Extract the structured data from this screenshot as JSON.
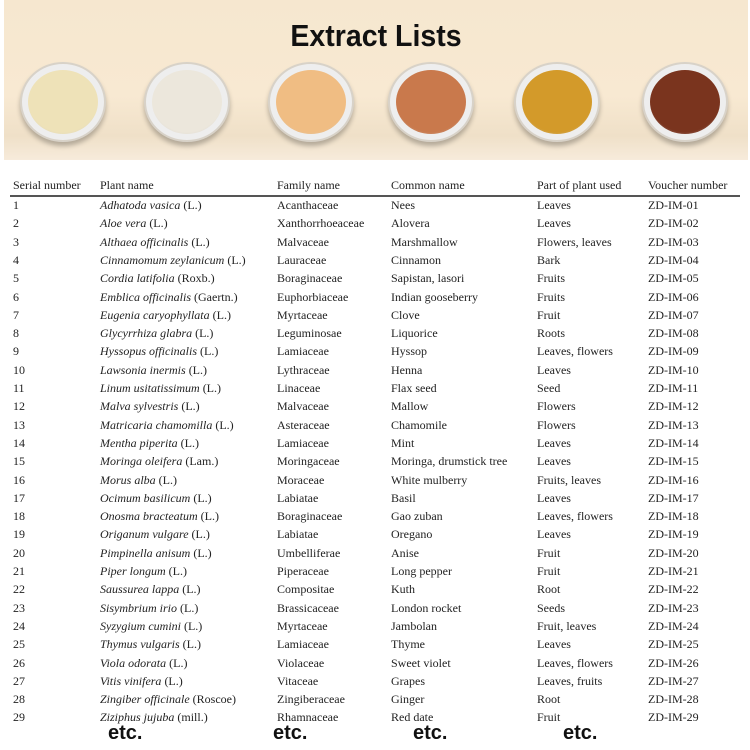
{
  "title": "Extract Lists",
  "powder_colors": [
    "#eee2b8",
    "#ece7dc",
    "#f0bd83",
    "#c9794c",
    "#d39a2a",
    "#7a341e"
  ],
  "headers": [
    "Serial number",
    "Plant name",
    "Family name",
    "Common name",
    "Part of plant used",
    "Voucher number"
  ],
  "rows": [
    [
      "1",
      "Adhatoda vasica",
      "(L.)",
      "Acanthaceae",
      "Nees",
      "Leaves",
      "ZD-IM-01"
    ],
    [
      "2",
      "Aloe vera",
      "(L.)",
      "Xanthorrhoeaceae",
      "Alovera",
      "Leaves",
      "ZD-IM-02"
    ],
    [
      "3",
      "Althaea officinalis",
      "(L.)",
      "Malvaceae",
      "Marshmallow",
      "Flowers, leaves",
      "ZD-IM-03"
    ],
    [
      "4",
      "Cinnamomum zeylanicum",
      "(L.)",
      "Lauraceae",
      "Cinnamon",
      "Bark",
      "ZD-IM-04"
    ],
    [
      "5",
      "Cordia latifolia",
      "(Roxb.)",
      "Boraginaceae",
      "Sapistan, lasori",
      "Fruits",
      "ZD-IM-05"
    ],
    [
      "6",
      "Emblica officinalis",
      "(Gaertn.)",
      "Euphorbiaceae",
      "Indian gooseberry",
      "Fruits",
      "ZD-IM-06"
    ],
    [
      "7",
      "Eugenia caryophyllata",
      "(L.)",
      "Myrtaceae",
      "Clove",
      "Fruit",
      "ZD-IM-07"
    ],
    [
      "8",
      "Glycyrrhiza glabra",
      "(L.)",
      "Leguminosae",
      "Liquorice",
      "Roots",
      "ZD-IM-08"
    ],
    [
      "9",
      "Hyssopus officinalis",
      "(L.)",
      "Lamiaceae",
      "Hyssop",
      "Leaves, flowers",
      "ZD-IM-09"
    ],
    [
      "10",
      "Lawsonia inermis",
      "(L.)",
      "Lythraceae",
      "Henna",
      "Leaves",
      "ZD-IM-10"
    ],
    [
      "11",
      "Linum usitatissimum",
      "(L.)",
      "Linaceae",
      "Flax seed",
      "Seed",
      "ZD-IM-11"
    ],
    [
      "12",
      "Malva sylvestris",
      "(L.)",
      "Malvaceae",
      "Mallow",
      "Flowers",
      "ZD-IM-12"
    ],
    [
      "13",
      "Matricaria chamomilla",
      "(L.)",
      "Asteraceae",
      "Chamomile",
      "Flowers",
      "ZD-IM-13"
    ],
    [
      "14",
      "Mentha piperita",
      "(L.)",
      "Lamiaceae",
      "Mint",
      "Leaves",
      "ZD-IM-14"
    ],
    [
      "15",
      "Moringa oleifera",
      "(Lam.)",
      "Moringaceae",
      "Moringa, drumstick tree",
      "Leaves",
      "ZD-IM-15"
    ],
    [
      "16",
      "Morus alba",
      "(L.)",
      "Moraceae",
      "White mulberry",
      "Fruits, leaves",
      "ZD-IM-16"
    ],
    [
      "17",
      "Ocimum basilicum",
      "(L.)",
      "Labiatae",
      "Basil",
      "Leaves",
      "ZD-IM-17"
    ],
    [
      "18",
      "Onosma bracteatum",
      "(L.)",
      "Boraginaceae",
      "Gao zuban",
      "Leaves, flowers",
      "ZD-IM-18"
    ],
    [
      "19",
      "Origanum vulgare",
      "(L.)",
      "Labiatae",
      "Oregano",
      "Leaves",
      "ZD-IM-19"
    ],
    [
      "20",
      "Pimpinella anisum",
      "(L.)",
      "Umbelliferae",
      "Anise",
      "Fruit",
      "ZD-IM-20"
    ],
    [
      "21",
      "Piper longum",
      "(L.)",
      "Piperaceae",
      "Long pepper",
      "Fruit",
      "ZD-IM-21"
    ],
    [
      "22",
      "Saussurea lappa",
      "(L.)",
      "Compositae",
      "Kuth",
      "Root",
      "ZD-IM-22"
    ],
    [
      "23",
      "Sisymbrium irio",
      "(L.)",
      "Brassicaceae",
      "London rocket",
      "Seeds",
      "ZD-IM-23"
    ],
    [
      "24",
      "Syzygium cumini",
      "(L.)",
      "Myrtaceae",
      "Jambolan",
      "Fruit, leaves",
      "ZD-IM-24"
    ],
    [
      "25",
      "Thymus vulgaris",
      "(L.)",
      "Lamiaceae",
      "Thyme",
      "Leaves",
      "ZD-IM-25"
    ],
    [
      "26",
      "Viola odorata",
      "(L.)",
      "Violaceae",
      "Sweet violet",
      "Leaves, flowers",
      "ZD-IM-26"
    ],
    [
      "27",
      "Vitis vinifera",
      "(L.)",
      "Vitaceae",
      "Grapes",
      "Leaves, fruits",
      "ZD-IM-27"
    ],
    [
      "28",
      "Zingiber officinale",
      "(Roscoe)",
      "Zingiberaceae",
      "Ginger",
      "Root",
      "ZD-IM-28"
    ],
    [
      "29",
      "Ziziphus jujuba",
      "(mill.)",
      "Rhamnaceae",
      "Red date",
      "Fruit",
      "ZD-IM-29"
    ]
  ],
  "etc": [
    "etc.",
    "etc.",
    "etc.",
    "etc."
  ]
}
